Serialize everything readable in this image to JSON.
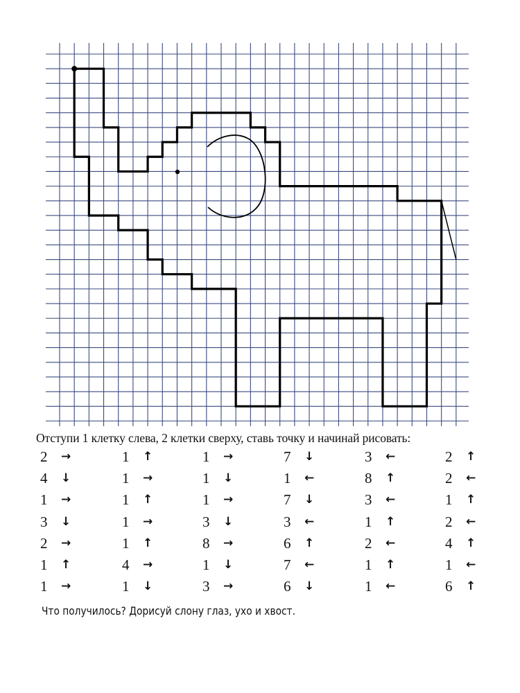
{
  "instruction": "Отступи 1 клетку слева, 2 клетки сверху, ставь точку и начинай рисовать:",
  "steps": [
    [
      {
        "n": "2",
        "dir": "right"
      },
      {
        "n": "4",
        "dir": "down"
      },
      {
        "n": "1",
        "dir": "right"
      },
      {
        "n": "3",
        "dir": "down"
      },
      {
        "n": "2",
        "dir": "right"
      },
      {
        "n": "1",
        "dir": "up"
      },
      {
        "n": "1",
        "dir": "right"
      }
    ],
    [
      {
        "n": "1",
        "dir": "up"
      },
      {
        "n": "1",
        "dir": "right"
      },
      {
        "n": "1",
        "dir": "up"
      },
      {
        "n": "1",
        "dir": "right"
      },
      {
        "n": "1",
        "dir": "up"
      },
      {
        "n": "4",
        "dir": "right"
      },
      {
        "n": "1",
        "dir": "down"
      }
    ],
    [
      {
        "n": "1",
        "dir": "right"
      },
      {
        "n": "1",
        "dir": "down"
      },
      {
        "n": "1",
        "dir": "right"
      },
      {
        "n": "3",
        "dir": "down"
      },
      {
        "n": "8",
        "dir": "right"
      },
      {
        "n": "1",
        "dir": "down"
      },
      {
        "n": "3",
        "dir": "right"
      }
    ],
    [
      {
        "n": "7",
        "dir": "down"
      },
      {
        "n": "1",
        "dir": "left"
      },
      {
        "n": "7",
        "dir": "down"
      },
      {
        "n": "3",
        "dir": "left"
      },
      {
        "n": "6",
        "dir": "up"
      },
      {
        "n": "7",
        "dir": "left"
      },
      {
        "n": "6",
        "dir": "down"
      }
    ],
    [
      {
        "n": "3",
        "dir": "left"
      },
      {
        "n": "8",
        "dir": "up"
      },
      {
        "n": "3",
        "dir": "left"
      },
      {
        "n": "1",
        "dir": "up"
      },
      {
        "n": "2",
        "dir": "left"
      },
      {
        "n": "1",
        "dir": "up"
      },
      {
        "n": "1",
        "dir": "left"
      }
    ],
    [
      {
        "n": "2",
        "dir": "up"
      },
      {
        "n": "2",
        "dir": "left"
      },
      {
        "n": "1",
        "dir": "up"
      },
      {
        "n": "2",
        "dir": "left"
      },
      {
        "n": "4",
        "dir": "up"
      },
      {
        "n": "1",
        "dir": "left"
      },
      {
        "n": "6",
        "dir": "up"
      }
    ]
  ],
  "question": "Что получилось? Дорисуй слону глаз, ухо и хвост.",
  "colors": {
    "grid": "#3a4a80",
    "outline": "#000000"
  }
}
